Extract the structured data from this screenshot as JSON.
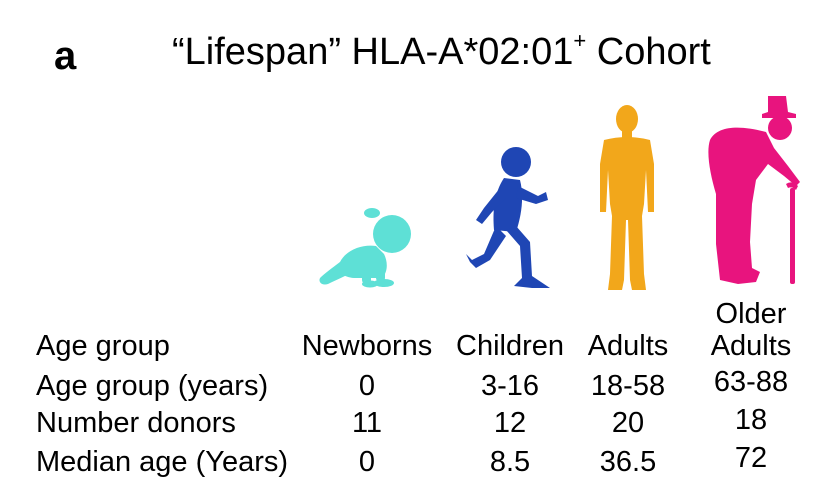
{
  "panel_label": "a",
  "title": {
    "prefix": "“Lifespan” HLA-A*02:01",
    "superscript": "+",
    "suffix": " Cohort"
  },
  "colors": {
    "newborn": "#5ee0d6",
    "child": "#1f46b4",
    "adult": "#f2a71b",
    "older": "#e8147e"
  },
  "icons": [
    "crawling-baby-icon",
    "running-child-icon",
    "standing-adult-icon",
    "older-adult-with-cane-icon"
  ],
  "table": {
    "row_labels": [
      "Age group",
      "Age group (years)",
      "Number donors",
      "Median age (Years)"
    ],
    "columns": [
      {
        "header": [
          "Newborns"
        ],
        "years": "0",
        "donors": "11",
        "median": "0"
      },
      {
        "header": [
          "Children"
        ],
        "years": "3-16",
        "donors": "12",
        "median": "8.5"
      },
      {
        "header": [
          "Adults"
        ],
        "years": "18-58",
        "donors": "20",
        "median": "36.5"
      },
      {
        "header": [
          "Older",
          "Adults"
        ],
        "years": "63-88",
        "donors": "18",
        "median": "72"
      }
    ]
  }
}
